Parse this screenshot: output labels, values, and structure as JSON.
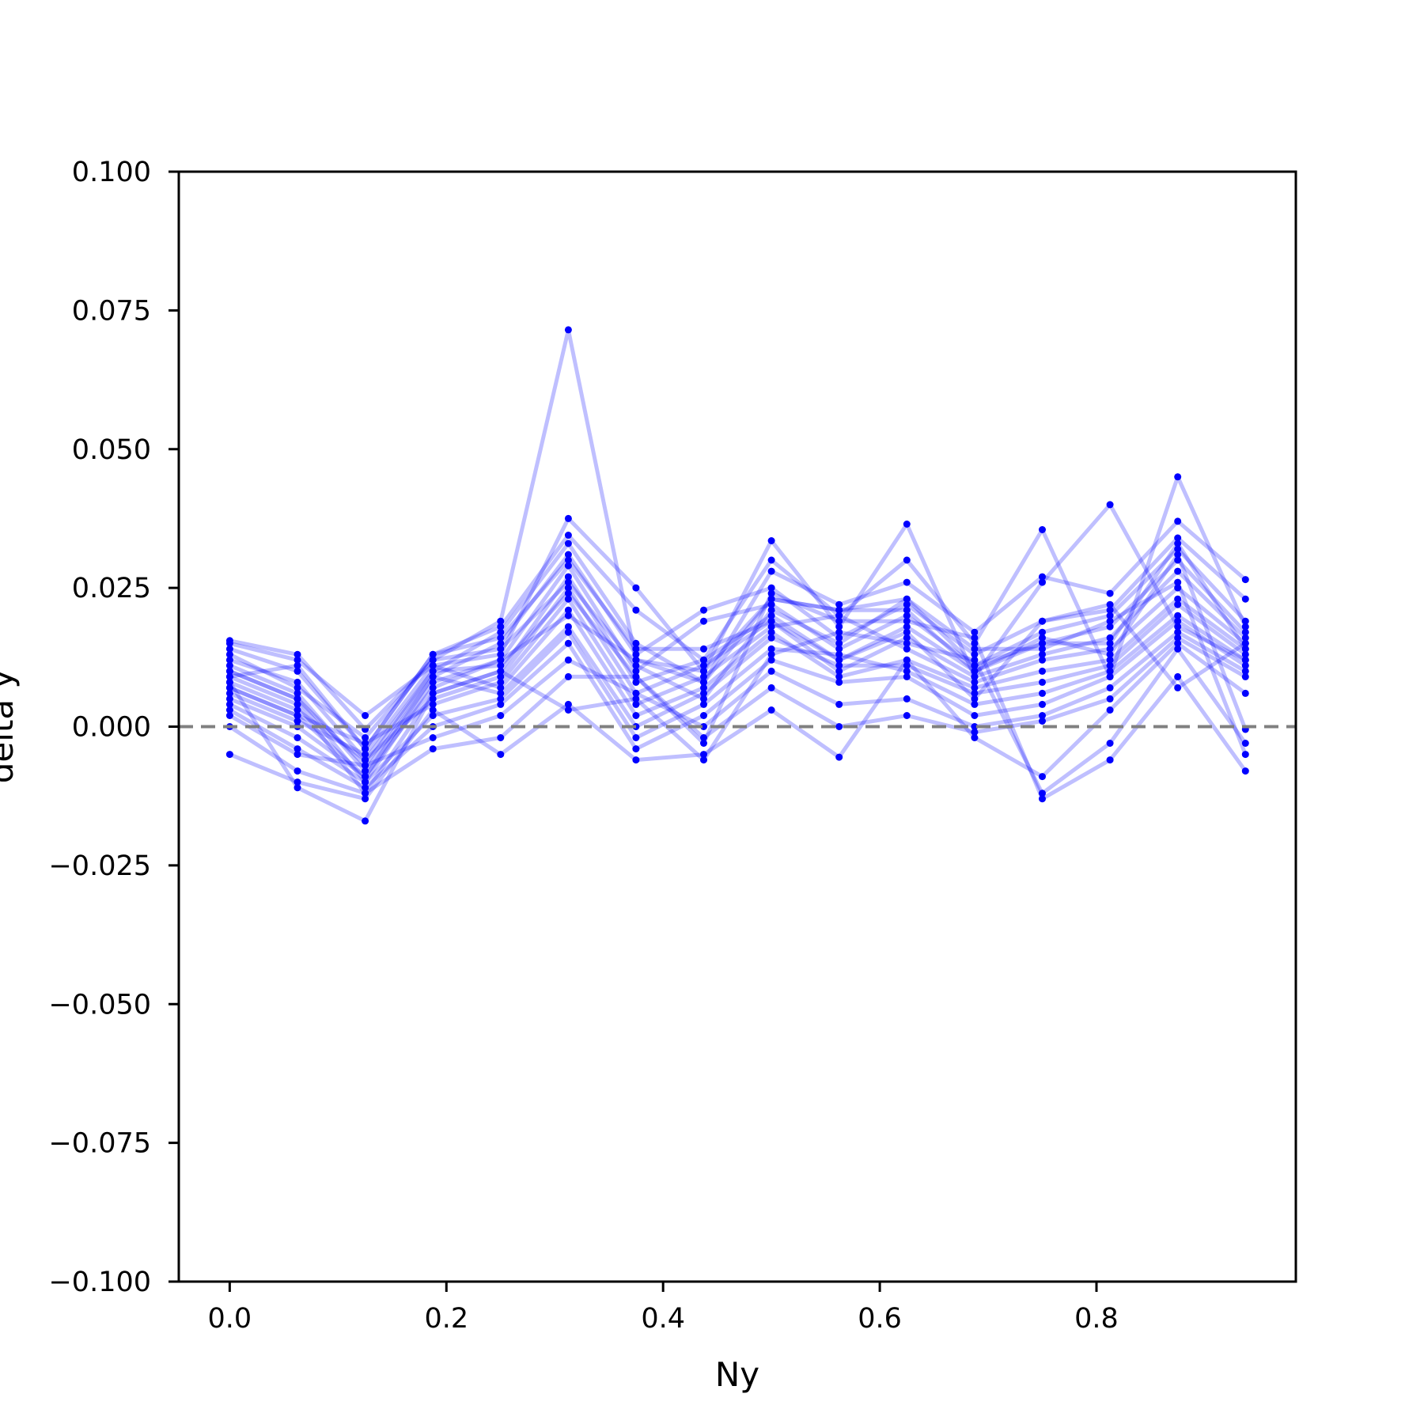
{
  "chart_data": {
    "type": "line",
    "title": "",
    "xlabel": "Ny",
    "ylabel": "delta y",
    "xlim": [
      -0.047,
      0.984
    ],
    "ylim": [
      -0.1,
      0.1
    ],
    "x": [
      0.0,
      0.0625,
      0.125,
      0.1875,
      0.25,
      0.3125,
      0.375,
      0.4375,
      0.5,
      0.5625,
      0.625,
      0.6875,
      0.75,
      0.8125,
      0.875,
      0.9375
    ],
    "x_ticks": [
      {
        "v": 0.0,
        "label": "0.0"
      },
      {
        "v": 0.2,
        "label": "0.2"
      },
      {
        "v": 0.4,
        "label": "0.4"
      },
      {
        "v": 0.6,
        "label": "0.6"
      },
      {
        "v": 0.8,
        "label": "0.8"
      }
    ],
    "y_ticks": [
      {
        "v": 0.1,
        "label": "0.100"
      },
      {
        "v": 0.075,
        "label": "0.075"
      },
      {
        "v": 0.05,
        "label": "0.050"
      },
      {
        "v": 0.025,
        "label": "0.025"
      },
      {
        "v": 0.0,
        "label": "0.000"
      },
      {
        "v": -0.025,
        "label": "−0.025"
      },
      {
        "v": -0.05,
        "label": "−0.050"
      },
      {
        "v": -0.075,
        "label": "−0.075"
      },
      {
        "v": -0.1,
        "label": "−0.100"
      }
    ],
    "reference_line": {
      "y": 0.0,
      "style": "dashed",
      "color": "#808080"
    },
    "line_color": "#0000ff",
    "line_alpha": 0.25,
    "marker_color": "#0000ff",
    "grid": false,
    "series": [
      {
        "values": [
          0.0155,
          0.013,
          -0.0005,
          0.012,
          0.019,
          0.0715,
          0.012,
          0.008,
          0.023,
          0.021,
          0.023,
          0.011,
          0.015,
          0.015,
          0.033,
          0.014
        ]
      },
      {
        "values": [
          0.015,
          0.012,
          0.002,
          0.011,
          0.013,
          0.0375,
          0.025,
          0.01,
          0.0335,
          0.018,
          0.0365,
          0.009,
          0.026,
          0.04,
          0.018,
          0.012
        ]
      },
      {
        "values": [
          0.014,
          0.01,
          -0.004,
          0.013,
          0.018,
          0.0345,
          0.021,
          0.012,
          0.03,
          0.02,
          0.03,
          0.015,
          0.0355,
          0.009,
          0.045,
          0.018
        ]
      },
      {
        "values": [
          0.012,
          0.008,
          -0.006,
          0.01,
          0.017,
          0.033,
          0.015,
          0.008,
          0.028,
          0.022,
          0.026,
          0.017,
          0.027,
          0.024,
          0.037,
          0.0265
        ]
      },
      {
        "values": [
          0.011,
          0.006,
          -0.008,
          0.009,
          0.015,
          0.031,
          0.013,
          0.021,
          0.025,
          0.016,
          0.022,
          0.013,
          0.019,
          0.021,
          0.034,
          0.023
        ]
      },
      {
        "values": [
          0.01,
          0.005,
          -0.01,
          0.008,
          0.012,
          0.029,
          0.01,
          0.019,
          0.022,
          0.014,
          0.02,
          0.011,
          0.017,
          0.02,
          0.032,
          0.019
        ]
      },
      {
        "values": [
          0.009,
          0.004,
          -0.012,
          0.006,
          0.01,
          0.027,
          0.008,
          0.012,
          0.02,
          0.012,
          0.018,
          0.01,
          0.015,
          0.018,
          0.03,
          0.017
        ]
      },
      {
        "values": [
          0.008,
          0.003,
          -0.006,
          0.005,
          0.009,
          0.025,
          0.006,
          0.011,
          0.019,
          0.01,
          0.016,
          0.009,
          0.013,
          0.016,
          0.028,
          0.016
        ]
      },
      {
        "values": [
          0.007,
          0.002,
          -0.003,
          0.004,
          0.008,
          0.023,
          0.004,
          0.009,
          0.018,
          0.02,
          0.014,
          0.008,
          0.012,
          0.014,
          0.025,
          0.015
        ]
      },
      {
        "values": [
          0.006,
          0.001,
          -0.005,
          0.011,
          0.007,
          0.021,
          0.002,
          0.007,
          0.017,
          0.009,
          0.012,
          0.007,
          0.01,
          0.012,
          0.023,
          0.014
        ]
      },
      {
        "values": [
          0.005,
          0.0,
          -0.009,
          0.009,
          0.006,
          0.018,
          0.0,
          0.006,
          0.016,
          0.011,
          0.011,
          0.006,
          0.008,
          0.011,
          0.022,
          0.013
        ]
      },
      {
        "values": [
          0.004,
          -0.002,
          -0.01,
          0.002,
          0.005,
          0.017,
          -0.002,
          0.004,
          0.014,
          0.013,
          0.01,
          0.004,
          0.006,
          0.01,
          0.02,
          0.012
        ]
      },
      {
        "values": [
          0.003,
          -0.004,
          -0.011,
          0.0,
          0.004,
          0.015,
          -0.004,
          0.002,
          0.012,
          0.008,
          0.009,
          0.002,
          0.004,
          0.009,
          0.019,
          0.011
        ]
      },
      {
        "values": [
          0.002,
          -0.005,
          -0.007,
          -0.002,
          0.002,
          0.012,
          0.006,
          0.0,
          0.01,
          0.004,
          0.005,
          0.0,
          0.002,
          0.007,
          0.017,
          0.01
        ]
      },
      {
        "values": [
          0.0,
          -0.008,
          -0.012,
          -0.004,
          -0.002,
          0.009,
          0.009,
          -0.002,
          0.007,
          0.0,
          0.002,
          -0.001,
          0.001,
          0.005,
          0.016,
          0.009
        ]
      },
      {
        "values": [
          -0.005,
          -0.01,
          -0.013,
          0.003,
          -0.005,
          0.004,
          -0.006,
          -0.005,
          0.003,
          -0.0055,
          0.012,
          -0.002,
          -0.009,
          0.003,
          0.015,
          0.006
        ]
      },
      {
        "values": [
          0.008,
          -0.011,
          -0.017,
          0.006,
          0.01,
          0.003,
          0.005,
          -0.006,
          0.013,
          0.017,
          0.015,
          0.012,
          -0.012,
          -0.003,
          0.014,
          -0.003
        ]
      },
      {
        "values": [
          0.013,
          0.007,
          -0.002,
          0.012,
          0.014,
          0.026,
          0.011,
          0.005,
          0.021,
          0.015,
          0.023,
          0.014,
          0.014,
          0.019,
          0.026,
          -0.005
        ]
      },
      {
        "values": [
          0.01,
          0.005,
          -0.007,
          0.01,
          0.011,
          0.024,
          0.009,
          -0.003,
          0.024,
          0.019,
          0.019,
          0.016,
          -0.013,
          -0.006,
          0.009,
          -0.008
        ]
      },
      {
        "values": [
          0.009,
          0.011,
          -0.004,
          0.013,
          0.016,
          0.03,
          0.014,
          0.014,
          0.019,
          0.012,
          0.017,
          0.005,
          0.019,
          0.022,
          0.007,
          0.015
        ]
      },
      {
        "values": [
          0.007,
          0.002,
          -0.009,
          0.007,
          0.012,
          0.02,
          0.012,
          0.01,
          0.023,
          0.021,
          0.021,
          0.01,
          0.016,
          0.013,
          0.031,
          -0.0005
        ]
      }
    ]
  }
}
